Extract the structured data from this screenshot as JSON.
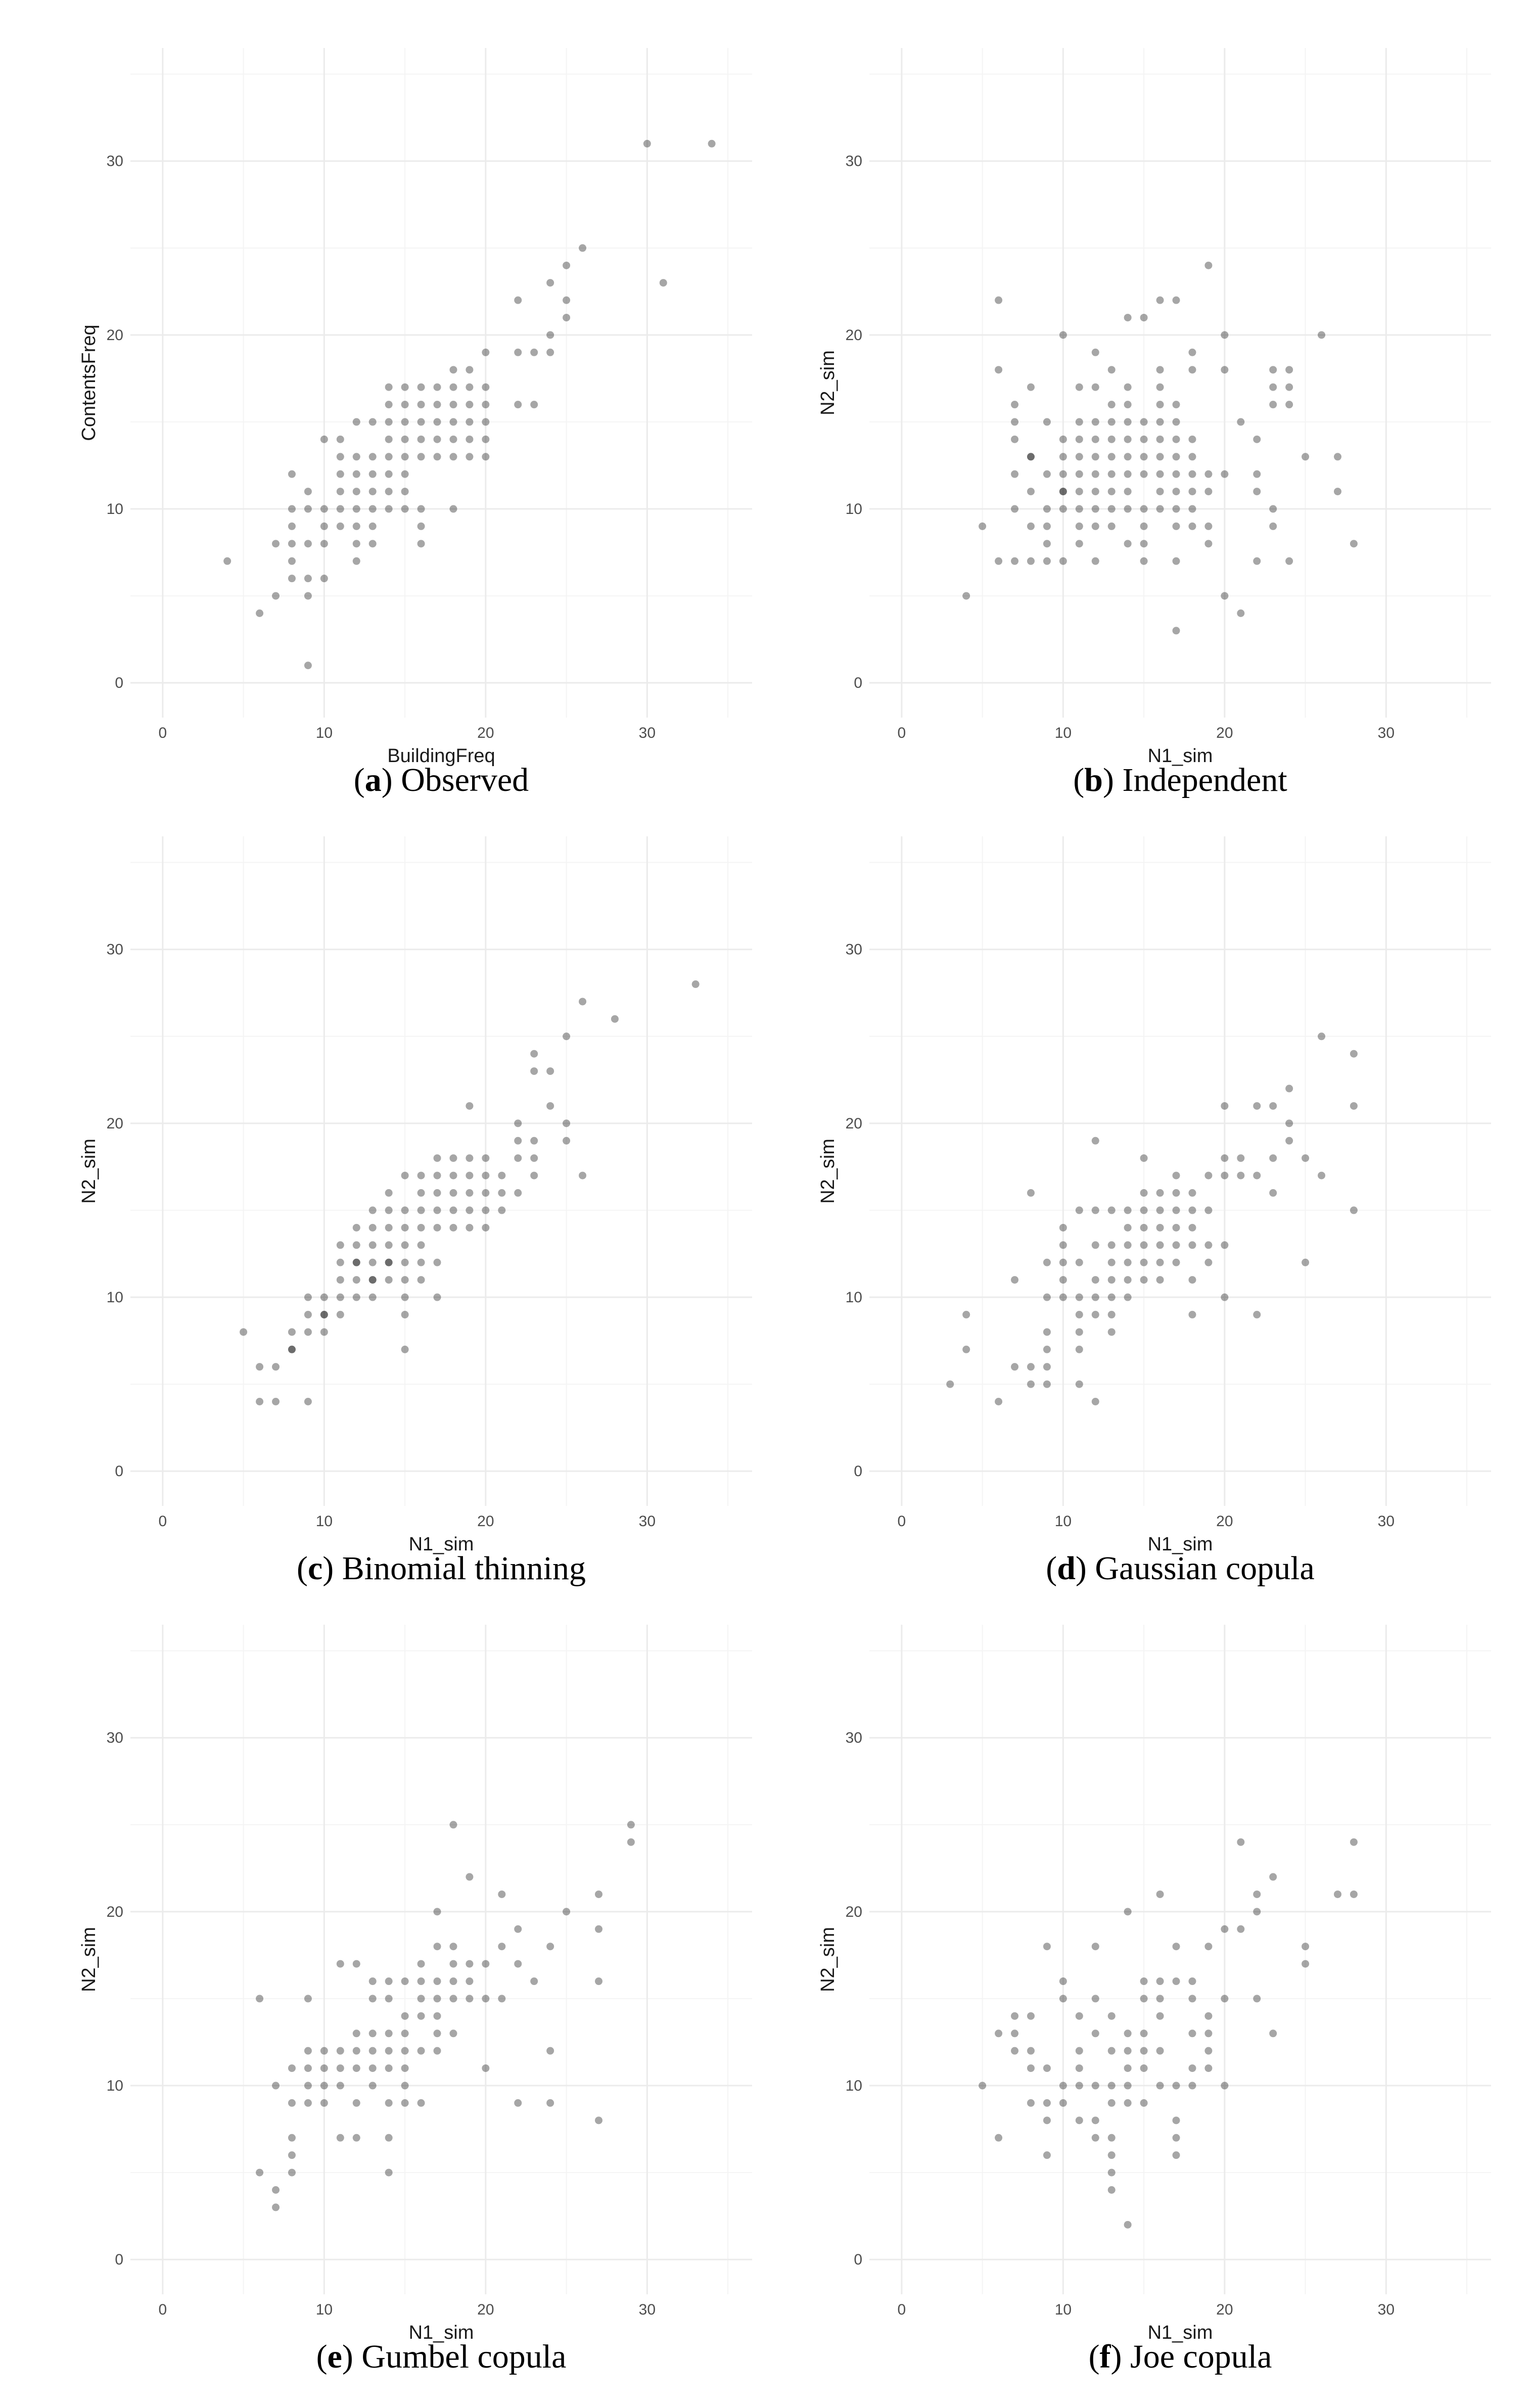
{
  "figure": {
    "panels": [
      {
        "letter": "a",
        "caption": "Observed"
      },
      {
        "letter": "b",
        "caption": "Independent"
      },
      {
        "letter": "c",
        "caption": "Binomial thinning"
      },
      {
        "letter": "d",
        "caption": "Gaussian copula"
      },
      {
        "letter": "e",
        "caption": "Gumbel copula"
      },
      {
        "letter": "f",
        "caption": "Joe copula"
      }
    ]
  },
  "chart_data": [
    {
      "type": "scatter",
      "title": "(a) Observed",
      "xlabel": "BuildingFreq",
      "ylabel": "ContentsFreq",
      "xlim": [
        -2,
        36.5
      ],
      "ylim": [
        -2,
        36.5
      ],
      "xticks": [
        "0",
        "10",
        "20",
        "30"
      ],
      "yticks": [
        "0",
        "10",
        "20",
        "30"
      ],
      "grid": true,
      "x": [
        4,
        6,
        7,
        7,
        8,
        8,
        8,
        8,
        8,
        8,
        9,
        9,
        9,
        9,
        9,
        9,
        10,
        10,
        10,
        10,
        10,
        11,
        11,
        11,
        11,
        11,
        11,
        12,
        12,
        12,
        12,
        12,
        12,
        12,
        12,
        13,
        13,
        13,
        13,
        13,
        13,
        13,
        14,
        14,
        14,
        14,
        14,
        14,
        14,
        14,
        15,
        15,
        15,
        15,
        15,
        15,
        15,
        15,
        16,
        16,
        16,
        16,
        16,
        16,
        16,
        16,
        17,
        17,
        17,
        17,
        17,
        18,
        18,
        18,
        18,
        18,
        18,
        18,
        19,
        19,
        19,
        19,
        19,
        19,
        20,
        20,
        20,
        20,
        20,
        20,
        22,
        22,
        22,
        23,
        23,
        24,
        24,
        24,
        25,
        25,
        25,
        26,
        30,
        31,
        34
      ],
      "y": [
        7,
        4,
        5,
        8,
        6,
        7,
        8,
        9,
        10,
        12,
        1,
        5,
        6,
        8,
        10,
        11,
        6,
        8,
        9,
        10,
        14,
        9,
        10,
        11,
        12,
        13,
        14,
        7,
        8,
        9,
        10,
        11,
        12,
        13,
        15,
        8,
        9,
        10,
        11,
        12,
        13,
        15,
        10,
        11,
        12,
        13,
        14,
        15,
        16,
        17,
        10,
        11,
        12,
        13,
        14,
        15,
        16,
        17,
        8,
        9,
        10,
        13,
        14,
        15,
        16,
        17,
        13,
        14,
        15,
        16,
        17,
        10,
        13,
        14,
        15,
        16,
        17,
        18,
        13,
        14,
        15,
        16,
        17,
        18,
        13,
        14,
        15,
        16,
        17,
        19,
        16,
        19,
        22,
        16,
        19,
        19,
        20,
        23,
        21,
        22,
        24,
        25,
        31,
        23,
        31
      ]
    },
    {
      "type": "scatter",
      "title": "(b) Independent",
      "xlabel": "N1_sim",
      "ylabel": "N2_sim",
      "xlim": [
        -2,
        36.5
      ],
      "ylim": [
        -2,
        36.5
      ],
      "xticks": [
        "0",
        "10",
        "20",
        "30"
      ],
      "yticks": [
        "0",
        "10",
        "20",
        "30"
      ],
      "grid": true,
      "x": [
        4,
        5,
        6,
        6,
        6,
        7,
        7,
        7,
        7,
        7,
        7,
        8,
        8,
        8,
        8,
        8,
        8,
        9,
        9,
        9,
        9,
        9,
        9,
        10,
        10,
        10,
        10,
        10,
        10,
        10,
        10,
        11,
        11,
        11,
        11,
        11,
        11,
        11,
        11,
        11,
        12,
        12,
        12,
        12,
        12,
        12,
        12,
        12,
        12,
        12,
        13,
        13,
        13,
        13,
        13,
        13,
        13,
        13,
        13,
        14,
        14,
        14,
        14,
        14,
        14,
        14,
        14,
        14,
        14,
        15,
        15,
        15,
        15,
        15,
        15,
        15,
        15,
        15,
        16,
        16,
        16,
        16,
        16,
        16,
        16,
        16,
        16,
        16,
        17,
        17,
        17,
        17,
        17,
        17,
        17,
        17,
        17,
        17,
        17,
        18,
        18,
        18,
        18,
        18,
        18,
        18,
        18,
        19,
        19,
        19,
        19,
        19,
        20,
        20,
        20,
        20,
        21,
        21,
        22,
        22,
        22,
        22,
        23,
        23,
        23,
        23,
        23,
        24,
        24,
        24,
        24,
        25,
        26,
        27,
        27,
        28
      ],
      "y": [
        5,
        9,
        7,
        18,
        22,
        7,
        12,
        14,
        15,
        16,
        10,
        11,
        13,
        17,
        7,
        9,
        13,
        7,
        8,
        9,
        10,
        12,
        15,
        7,
        10,
        11,
        12,
        13,
        14,
        20,
        11,
        8,
        9,
        10,
        11,
        12,
        13,
        14,
        15,
        17,
        7,
        9,
        10,
        11,
        12,
        13,
        14,
        15,
        19,
        17,
        9,
        10,
        11,
        12,
        13,
        14,
        15,
        16,
        18,
        8,
        10,
        11,
        12,
        13,
        14,
        15,
        16,
        17,
        21,
        7,
        8,
        9,
        10,
        12,
        13,
        14,
        15,
        21,
        10,
        11,
        12,
        13,
        14,
        15,
        16,
        17,
        18,
        22,
        3,
        7,
        9,
        10,
        11,
        12,
        13,
        14,
        15,
        16,
        22,
        9,
        10,
        11,
        12,
        13,
        14,
        18,
        19,
        8,
        9,
        11,
        12,
        24,
        5,
        12,
        18,
        20,
        4,
        15,
        7,
        11,
        12,
        14,
        10,
        9,
        16,
        17,
        18,
        7,
        16,
        17,
        18,
        13,
        20,
        11,
        13,
        8
      ]
    },
    {
      "type": "scatter",
      "title": "(c) Binomial thinning",
      "xlabel": "N1_sim",
      "ylabel": "N2_sim",
      "xlim": [
        -2,
        36.5
      ],
      "ylim": [
        -2,
        36.5
      ],
      "xticks": [
        "0",
        "10",
        "20",
        "30"
      ],
      "yticks": [
        "0",
        "10",
        "20",
        "30"
      ],
      "grid": true,
      "x": [
        5,
        6,
        6,
        7,
        7,
        8,
        8,
        8,
        9,
        9,
        9,
        9,
        10,
        10,
        10,
        10,
        11,
        11,
        11,
        11,
        11,
        12,
        12,
        12,
        12,
        12,
        12,
        13,
        13,
        13,
        13,
        13,
        13,
        13,
        14,
        14,
        14,
        14,
        14,
        14,
        14,
        15,
        15,
        15,
        15,
        15,
        15,
        15,
        15,
        15,
        16,
        16,
        16,
        16,
        16,
        16,
        16,
        17,
        17,
        17,
        17,
        17,
        17,
        17,
        18,
        18,
        18,
        18,
        18,
        19,
        19,
        19,
        19,
        19,
        19,
        20,
        20,
        20,
        20,
        20,
        21,
        21,
        21,
        22,
        22,
        22,
        22,
        23,
        23,
        23,
        23,
        23,
        24,
        24,
        25,
        25,
        25,
        26,
        26,
        28,
        33
      ],
      "y": [
        8,
        4,
        6,
        4,
        6,
        7,
        8,
        7,
        4,
        9,
        10,
        8,
        8,
        9,
        10,
        9,
        10,
        11,
        12,
        13,
        9,
        10,
        11,
        12,
        13,
        14,
        12,
        10,
        11,
        12,
        13,
        14,
        15,
        11,
        11,
        12,
        13,
        14,
        15,
        16,
        12,
        7,
        9,
        10,
        11,
        12,
        13,
        14,
        15,
        17,
        11,
        12,
        13,
        14,
        15,
        16,
        17,
        10,
        12,
        14,
        15,
        16,
        17,
        18,
        14,
        15,
        16,
        17,
        18,
        14,
        15,
        16,
        17,
        18,
        21,
        14,
        15,
        16,
        17,
        18,
        15,
        16,
        17,
        16,
        18,
        19,
        20,
        17,
        18,
        19,
        23,
        24,
        21,
        23,
        19,
        20,
        25,
        17,
        27,
        26,
        28
      ]
    },
    {
      "type": "scatter",
      "title": "(d) Gaussian copula",
      "xlabel": "N1_sim",
      "ylabel": "N2_sim",
      "xlim": [
        -2,
        36.5
      ],
      "ylim": [
        -2,
        36.5
      ],
      "xticks": [
        "0",
        "10",
        "20",
        "30"
      ],
      "yticks": [
        "0",
        "10",
        "20",
        "30"
      ],
      "grid": true,
      "x": [
        3,
        4,
        4,
        6,
        7,
        7,
        8,
        8,
        8,
        9,
        9,
        9,
        9,
        9,
        9,
        10,
        10,
        10,
        10,
        10,
        11,
        11,
        11,
        11,
        11,
        11,
        11,
        12,
        12,
        12,
        12,
        12,
        12,
        12,
        13,
        13,
        13,
        13,
        13,
        13,
        13,
        14,
        14,
        14,
        14,
        14,
        14,
        15,
        15,
        15,
        15,
        15,
        15,
        15,
        16,
        16,
        16,
        16,
        16,
        16,
        17,
        17,
        17,
        17,
        17,
        17,
        18,
        18,
        18,
        18,
        18,
        18,
        19,
        19,
        19,
        19,
        20,
        20,
        20,
        20,
        20,
        21,
        21,
        22,
        22,
        22,
        23,
        23,
        23,
        24,
        24,
        24,
        25,
        25,
        26,
        26,
        28,
        28,
        28
      ],
      "y": [
        5,
        7,
        9,
        4,
        6,
        11,
        5,
        6,
        16,
        5,
        6,
        7,
        8,
        10,
        12,
        10,
        11,
        12,
        13,
        14,
        5,
        7,
        8,
        9,
        10,
        12,
        15,
        4,
        9,
        10,
        11,
        13,
        15,
        19,
        8,
        9,
        10,
        11,
        12,
        13,
        15,
        10,
        11,
        12,
        13,
        14,
        15,
        11,
        12,
        13,
        14,
        15,
        16,
        18,
        11,
        12,
        13,
        14,
        15,
        16,
        12,
        13,
        14,
        15,
        16,
        17,
        9,
        11,
        13,
        14,
        15,
        16,
        12,
        13,
        15,
        17,
        10,
        13,
        17,
        18,
        21,
        17,
        18,
        9,
        17,
        21,
        16,
        18,
        21,
        19,
        20,
        22,
        12,
        18,
        17,
        25,
        15,
        21,
        24
      ]
    },
    {
      "type": "scatter",
      "title": "(e) Gumbel copula",
      "xlabel": "N1_sim",
      "ylabel": "N2_sim",
      "xlim": [
        -2,
        36.5
      ],
      "ylim": [
        -2,
        36.5
      ],
      "xticks": [
        "0",
        "10",
        "20",
        "30"
      ],
      "yticks": [
        "0",
        "10",
        "20",
        "30"
      ],
      "grid": true,
      "x": [
        6,
        6,
        7,
        7,
        7,
        8,
        8,
        8,
        8,
        8,
        9,
        9,
        9,
        9,
        9,
        10,
        10,
        10,
        10,
        11,
        11,
        11,
        11,
        11,
        12,
        12,
        12,
        12,
        12,
        12,
        13,
        13,
        13,
        13,
        13,
        13,
        14,
        14,
        14,
        14,
        14,
        14,
        14,
        14,
        15,
        15,
        15,
        15,
        15,
        15,
        15,
        16,
        16,
        16,
        16,
        16,
        16,
        17,
        17,
        17,
        17,
        17,
        17,
        17,
        18,
        18,
        18,
        18,
        18,
        18,
        19,
        19,
        19,
        19,
        20,
        20,
        20,
        21,
        21,
        21,
        22,
        22,
        22,
        23,
        24,
        24,
        24,
        25,
        27,
        27,
        27,
        27,
        29,
        29
      ],
      "y": [
        5,
        15,
        3,
        4,
        10,
        5,
        6,
        7,
        9,
        11,
        9,
        10,
        11,
        12,
        15,
        9,
        10,
        11,
        12,
        7,
        10,
        11,
        12,
        17,
        7,
        9,
        11,
        12,
        13,
        17,
        10,
        11,
        12,
        13,
        15,
        16,
        5,
        7,
        9,
        11,
        12,
        13,
        15,
        16,
        9,
        10,
        11,
        12,
        13,
        14,
        16,
        9,
        12,
        14,
        15,
        16,
        17,
        12,
        13,
        14,
        16,
        18,
        20,
        15,
        13,
        15,
        16,
        17,
        18,
        25,
        15,
        16,
        17,
        22,
        11,
        15,
        17,
        15,
        18,
        21,
        9,
        17,
        19,
        16,
        9,
        12,
        18,
        20,
        8,
        16,
        19,
        21,
        24,
        25
      ]
    },
    {
      "type": "scatter",
      "title": "(f) Joe copula",
      "xlabel": "N1_sim",
      "ylabel": "N2_sim",
      "xlim": [
        -2,
        36.5
      ],
      "ylim": [
        -2,
        36.5
      ],
      "xticks": [
        "0",
        "10",
        "20",
        "30"
      ],
      "yticks": [
        "0",
        "10",
        "20",
        "30"
      ],
      "grid": true,
      "x": [
        5,
        6,
        6,
        7,
        7,
        7,
        8,
        8,
        8,
        8,
        9,
        9,
        9,
        9,
        9,
        10,
        10,
        10,
        10,
        11,
        11,
        11,
        11,
        11,
        12,
        12,
        12,
        12,
        12,
        12,
        13,
        13,
        13,
        13,
        13,
        13,
        13,
        13,
        14,
        14,
        14,
        14,
        14,
        14,
        14,
        15,
        15,
        15,
        15,
        15,
        15,
        16,
        16,
        16,
        16,
        16,
        16,
        17,
        17,
        17,
        17,
        17,
        17,
        18,
        18,
        18,
        18,
        18,
        19,
        19,
        19,
        19,
        19,
        20,
        20,
        20,
        21,
        21,
        22,
        22,
        22,
        23,
        23,
        25,
        25,
        27,
        28,
        28
      ],
      "y": [
        10,
        7,
        13,
        13,
        14,
        12,
        9,
        11,
        12,
        14,
        6,
        8,
        9,
        11,
        18,
        9,
        10,
        15,
        16,
        8,
        10,
        11,
        12,
        14,
        7,
        8,
        10,
        13,
        15,
        18,
        4,
        5,
        6,
        7,
        9,
        10,
        12,
        14,
        2,
        9,
        10,
        11,
        12,
        13,
        20,
        9,
        11,
        12,
        13,
        15,
        16,
        10,
        12,
        14,
        15,
        16,
        21,
        6,
        7,
        8,
        10,
        16,
        18,
        10,
        11,
        13,
        15,
        16,
        11,
        12,
        13,
        14,
        18,
        10,
        15,
        19,
        19,
        24,
        15,
        20,
        21,
        13,
        22,
        17,
        18,
        21,
        21,
        24
      ]
    }
  ]
}
